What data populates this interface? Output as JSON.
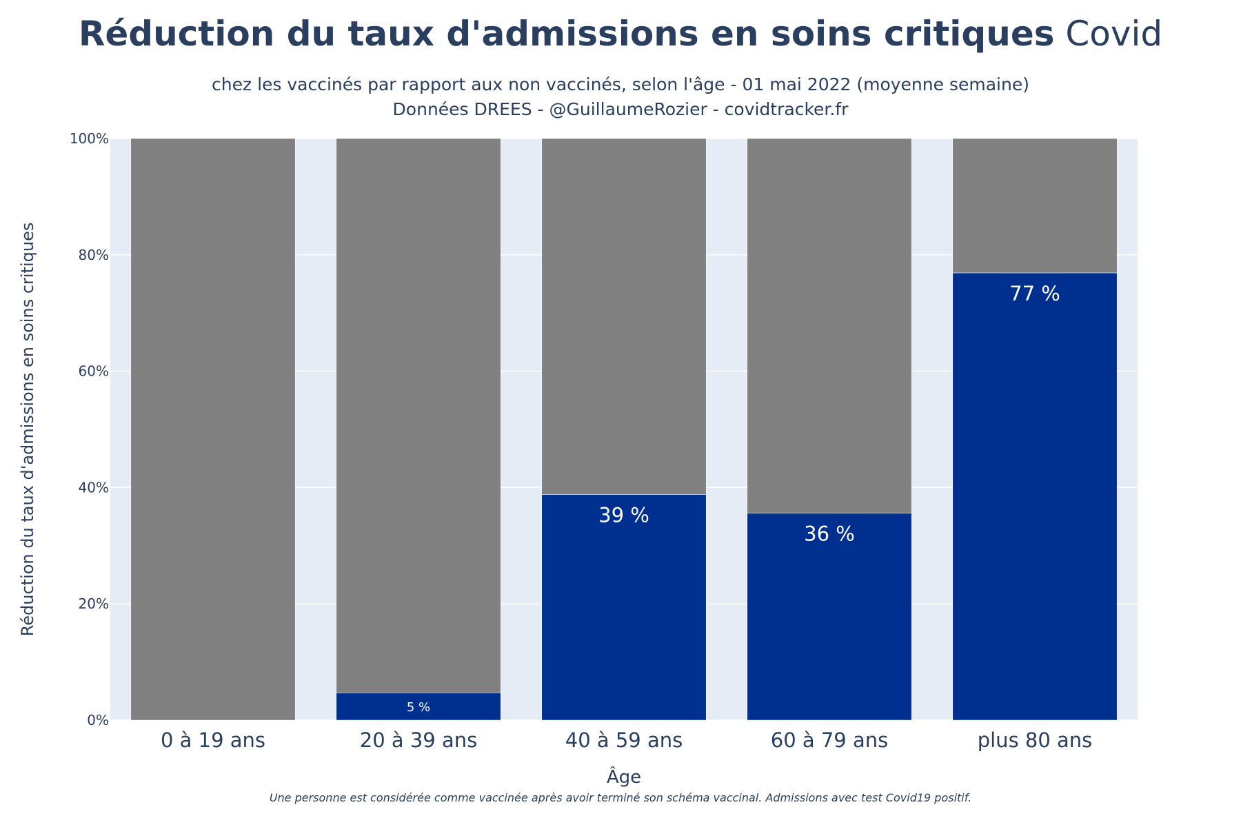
{
  "title_bold": "Réduction du taux d'admissions en soins critiques",
  "title_light": "Covid",
  "subtitle_line1": "chez les vaccinés par rapport aux non vaccinés, selon l'âge - 01 mai 2022 (moyenne semaine)",
  "subtitle_line2": "Données DREES - @GuillaumeRozier - covidtracker.fr",
  "footnote": "Une personne est considérée comme vaccinée après avoir terminé son schéma vaccinal. Admissions avec test Covid19 positif.",
  "colors": {
    "plot_bg": "#e5ecf6",
    "reduction_bar": "#00308f",
    "remaining_bar": "#808080",
    "text": "#2a3f5f"
  },
  "chart_data": {
    "type": "bar",
    "stacked": true,
    "categories": [
      "0 à 19 ans",
      "20 à 39 ans",
      "40 à 59 ans",
      "60 à 79 ans",
      "plus 80 ans"
    ],
    "series": [
      {
        "name": "reduction",
        "values": [
          0,
          4.7,
          38.8,
          35.6,
          76.9
        ]
      },
      {
        "name": "remaining",
        "values": [
          100,
          95.3,
          61.2,
          64.4,
          23.1
        ]
      }
    ],
    "data_labels": [
      "",
      "5 %",
      "39 %",
      "36 %",
      "77 %"
    ],
    "xlabel": "Âge",
    "ylabel": "Réduction du taux d'admissions en soins critiques",
    "ylim": [
      0,
      100
    ],
    "yticks": [
      0,
      20,
      40,
      60,
      80,
      100
    ],
    "ytick_labels": [
      "0%",
      "20%",
      "40%",
      "60%",
      "80%",
      "100%"
    ],
    "grid": true
  }
}
